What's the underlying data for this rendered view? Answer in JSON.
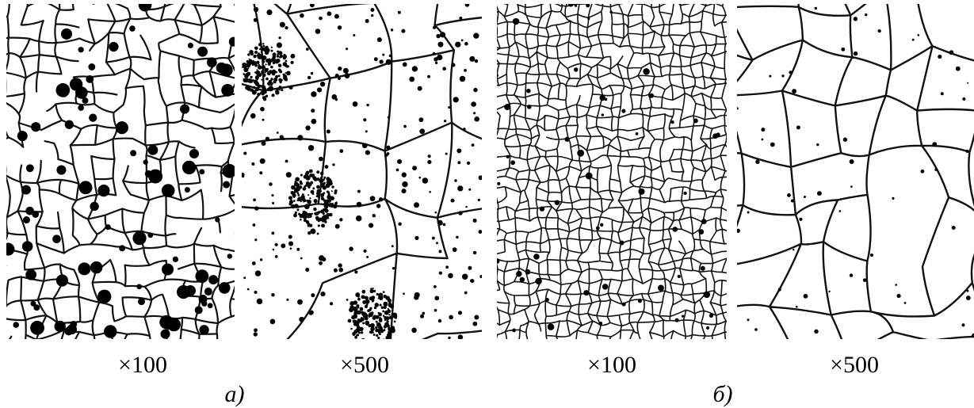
{
  "groups": [
    {
      "label": "а)",
      "panels": [
        {
          "magnification": "×100"
        },
        {
          "magnification": "×500"
        }
      ]
    },
    {
      "label": "б)",
      "panels": [
        {
          "magnification": "×100"
        },
        {
          "magnification": "×500"
        }
      ]
    }
  ]
}
